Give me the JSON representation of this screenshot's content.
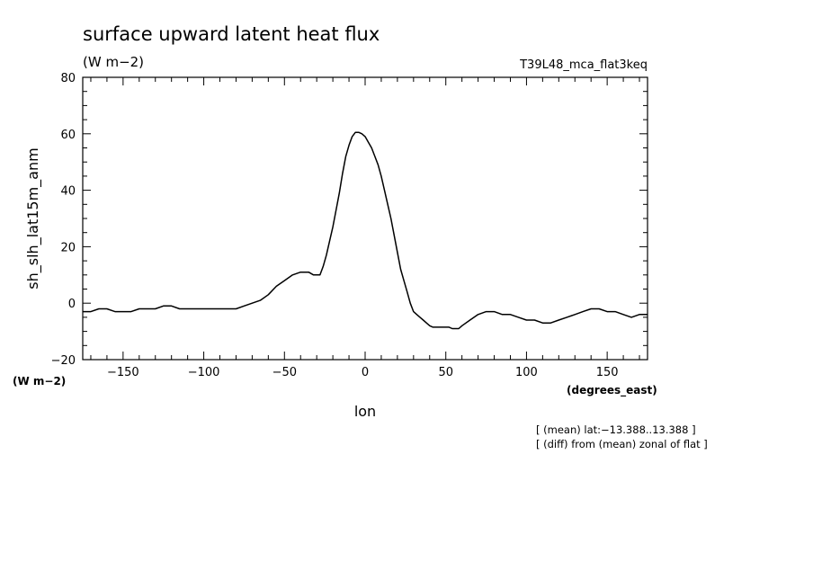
{
  "chart_data": {
    "type": "line",
    "title": "surface upward latent heat flux",
    "subtitle": "(W m−2)",
    "run_label": "T39L48_mca_flat3keq",
    "xlabel": "lon",
    "ylabel": "sh_slh_lat15m_anm",
    "x_unit": "(degrees_east)",
    "y_unit": "(W m−2)",
    "xlim": [
      -175,
      175
    ],
    "ylim": [
      -20,
      80
    ],
    "x_ticks": [
      -150,
      -100,
      -50,
      0,
      50,
      100,
      150
    ],
    "x_tick_labels": [
      "−150",
      "−100",
      "−50",
      "0",
      "50",
      "100",
      "150"
    ],
    "y_ticks": [
      -20,
      0,
      20,
      40,
      60,
      80
    ],
    "y_tick_labels": [
      "−20",
      "0",
      "20",
      "40",
      "60",
      "80"
    ],
    "grid": false,
    "notes": [
      "[ (mean) lat:−13.388..13.388 ]",
      "[ (diff) from (mean) zonal of flat ]"
    ],
    "series": [
      {
        "x": [
          -175,
          -170,
          -165,
          -160,
          -155,
          -150,
          -145,
          -140,
          -135,
          -130,
          -125,
          -120,
          -115,
          -110,
          -105,
          -100,
          -95,
          -90,
          -85,
          -80,
          -75,
          -70,
          -65,
          -60,
          -55,
          -50,
          -45,
          -40,
          -35,
          -32,
          -30,
          -28,
          -26,
          -24,
          -22,
          -20,
          -18,
          -16,
          -14,
          -12,
          -10,
          -8,
          -6,
          -4,
          -2,
          0,
          2,
          4,
          6,
          8,
          10,
          12,
          14,
          16,
          18,
          20,
          22,
          24,
          26,
          28,
          30,
          32,
          34,
          36,
          38,
          40,
          42,
          44,
          46,
          48,
          50,
          52,
          54,
          56,
          58,
          60,
          65,
          70,
          75,
          80,
          85,
          90,
          95,
          100,
          105,
          110,
          115,
          120,
          125,
          130,
          135,
          140,
          145,
          150,
          155,
          160,
          165,
          170,
          175
        ],
        "y": [
          -3,
          -3,
          -2,
          -2,
          -3,
          -3,
          -3,
          -2,
          -2,
          -2,
          -1,
          -1,
          -2,
          -2,
          -2,
          -2,
          -2,
          -2,
          -2,
          -2,
          -1,
          0,
          1,
          3,
          6,
          8,
          10,
          11,
          11,
          10,
          10,
          10,
          13,
          17,
          22,
          27,
          33,
          39,
          46,
          52,
          56,
          59,
          60.5,
          60.5,
          60,
          59,
          57,
          55,
          52,
          49,
          45,
          40,
          35,
          30,
          24,
          18,
          12,
          8,
          4,
          0,
          -3,
          -4,
          -5,
          -6,
          -7,
          -8,
          -8.5,
          -8.5,
          -8.5,
          -8.5,
          -8.5,
          -8.5,
          -9,
          -9,
          -9,
          -8,
          -6,
          -4,
          -3,
          -3,
          -4,
          -4,
          -5,
          -6,
          -6,
          -7,
          -7,
          -6,
          -5,
          -4,
          -3,
          -2,
          -2,
          -3,
          -3,
          -4,
          -5,
          -4,
          -4
        ]
      }
    ]
  }
}
